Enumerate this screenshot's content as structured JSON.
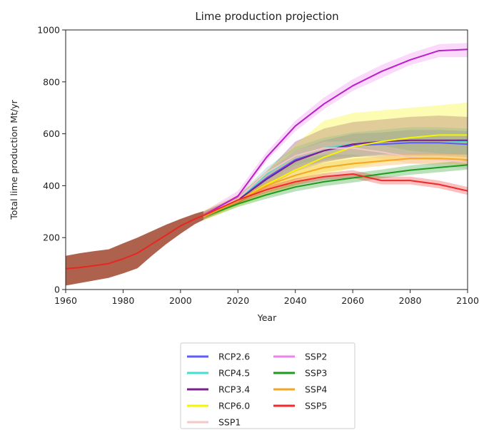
{
  "chart_data": {
    "type": "line",
    "title": "Lime production projection",
    "xlabel": "Year",
    "ylabel": "Total lime production Mt/yr",
    "xlim": [
      1960,
      2100
    ],
    "ylim": [
      0,
      1000
    ],
    "xticks": [
      1960,
      1980,
      2000,
      2020,
      2040,
      2060,
      2080,
      2100
    ],
    "yticks": [
      0,
      200,
      400,
      600,
      800,
      1000
    ],
    "grid": false,
    "legend_position": "bottom-center",
    "historical": {
      "color": "#e8261f",
      "band_color": "#a0462e",
      "x": [
        1960,
        1965,
        1970,
        1975,
        1980,
        1985,
        1990,
        1995,
        2000,
        2005,
        2008
      ],
      "y": [
        80,
        85,
        92,
        100,
        118,
        140,
        175,
        210,
        245,
        272,
        285
      ],
      "lower": [
        15,
        25,
        35,
        45,
        62,
        82,
        130,
        175,
        215,
        252,
        268
      ],
      "upper": [
        130,
        140,
        148,
        155,
        178,
        200,
        225,
        250,
        272,
        292,
        302
      ]
    },
    "series": [
      {
        "name": "RCP2.6",
        "color": "#5b5bff",
        "x": [
          2008,
          2020,
          2030,
          2040,
          2050,
          2060,
          2070,
          2080,
          2090,
          2100
        ],
        "y": [
          285,
          345,
          430,
          500,
          535,
          555,
          560,
          565,
          565,
          560
        ],
        "lower": [
          270,
          330,
          405,
          465,
          495,
          510,
          515,
          515,
          515,
          510
        ],
        "upper": [
          300,
          360,
          455,
          535,
          575,
          600,
          605,
          615,
          615,
          610
        ]
      },
      {
        "name": "RCP4.5",
        "color": "#40e0d0",
        "x": [
          2008,
          2020,
          2030,
          2040,
          2050,
          2060,
          2070,
          2080,
          2090,
          2100
        ],
        "y": [
          285,
          345,
          445,
          515,
          545,
          560,
          570,
          575,
          575,
          570
        ],
        "lower": [
          270,
          330,
          420,
          480,
          505,
          515,
          520,
          525,
          525,
          520
        ],
        "upper": [
          300,
          360,
          470,
          550,
          585,
          605,
          615,
          625,
          625,
          620
        ]
      },
      {
        "name": "RCP3.4",
        "color": "#7a1f8c",
        "x": [
          2008,
          2020,
          2030,
          2040,
          2050,
          2060,
          2070,
          2080,
          2090,
          2100
        ],
        "y": [
          285,
          345,
          425,
          495,
          535,
          560,
          570,
          575,
          575,
          575
        ],
        "lower": [
          270,
          330,
          395,
          455,
          490,
          510,
          520,
          520,
          520,
          520
        ],
        "upper": [
          300,
          360,
          455,
          570,
          620,
          645,
          655,
          665,
          670,
          665
        ]
      },
      {
        "name": "RCP6.0",
        "color": "#f5f500",
        "x": [
          2008,
          2020,
          2030,
          2040,
          2050,
          2060,
          2070,
          2080,
          2090,
          2100
        ],
        "y": [
          285,
          340,
          405,
          460,
          510,
          550,
          570,
          585,
          595,
          595
        ],
        "lower": [
          265,
          320,
          360,
          400,
          440,
          470,
          490,
          500,
          505,
          505
        ],
        "upper": [
          305,
          365,
          455,
          560,
          650,
          680,
          690,
          700,
          710,
          720
        ]
      },
      {
        "name": "SSP1",
        "color": "#f7c6c6",
        "x": [
          2008,
          2020,
          2030,
          2040,
          2050,
          2060,
          2070,
          2080,
          2090,
          2100
        ],
        "y": [
          285,
          350,
          450,
          515,
          545,
          545,
          530,
          510,
          500,
          490
        ],
        "lower": [
          275,
          335,
          430,
          495,
          520,
          520,
          505,
          485,
          475,
          465
        ],
        "upper": [
          295,
          365,
          470,
          535,
          570,
          570,
          555,
          535,
          525,
          515
        ]
      },
      {
        "name": "SSP2",
        "color": "#b820c8",
        "band_color": "#ee82ee",
        "x": [
          2008,
          2020,
          2030,
          2040,
          2050,
          2060,
          2070,
          2080,
          2090,
          2100
        ],
        "y": [
          285,
          360,
          510,
          630,
          715,
          785,
          840,
          885,
          920,
          925
        ],
        "lower": [
          270,
          345,
          495,
          610,
          695,
          765,
          815,
          865,
          895,
          895
        ],
        "upper": [
          300,
          380,
          530,
          650,
          740,
          810,
          865,
          910,
          945,
          950
        ]
      },
      {
        "name": "SSP3",
        "color": "#1e9a1e",
        "x": [
          2008,
          2020,
          2030,
          2040,
          2050,
          2060,
          2070,
          2080,
          2090,
          2100
        ],
        "y": [
          280,
          330,
          365,
          395,
          415,
          430,
          445,
          460,
          470,
          480
        ],
        "lower": [
          268,
          318,
          350,
          378,
          398,
          412,
          428,
          442,
          452,
          462
        ],
        "upper": [
          292,
          342,
          380,
          412,
          432,
          448,
          462,
          478,
          488,
          498
        ]
      },
      {
        "name": "SSP4",
        "color": "#f5a623",
        "x": [
          2008,
          2020,
          2030,
          2040,
          2050,
          2060,
          2070,
          2080,
          2090,
          2100
        ],
        "y": [
          280,
          340,
          400,
          440,
          470,
          485,
          495,
          505,
          505,
          500
        ],
        "lower": [
          268,
          326,
          385,
          422,
          452,
          466,
          476,
          485,
          485,
          480
        ],
        "upper": [
          292,
          354,
          415,
          458,
          488,
          504,
          514,
          525,
          525,
          520
        ]
      },
      {
        "name": "SSP5",
        "color": "#f02a2a",
        "x": [
          2008,
          2020,
          2030,
          2040,
          2050,
          2060,
          2070,
          2080,
          2090,
          2100
        ],
        "y": [
          285,
          345,
          385,
          415,
          435,
          445,
          420,
          420,
          405,
          380
        ],
        "lower": [
          275,
          333,
          372,
          402,
          422,
          430,
          405,
          405,
          390,
          365
        ],
        "upper": [
          295,
          357,
          398,
          428,
          448,
          460,
          435,
          435,
          420,
          395
        ]
      }
    ]
  }
}
